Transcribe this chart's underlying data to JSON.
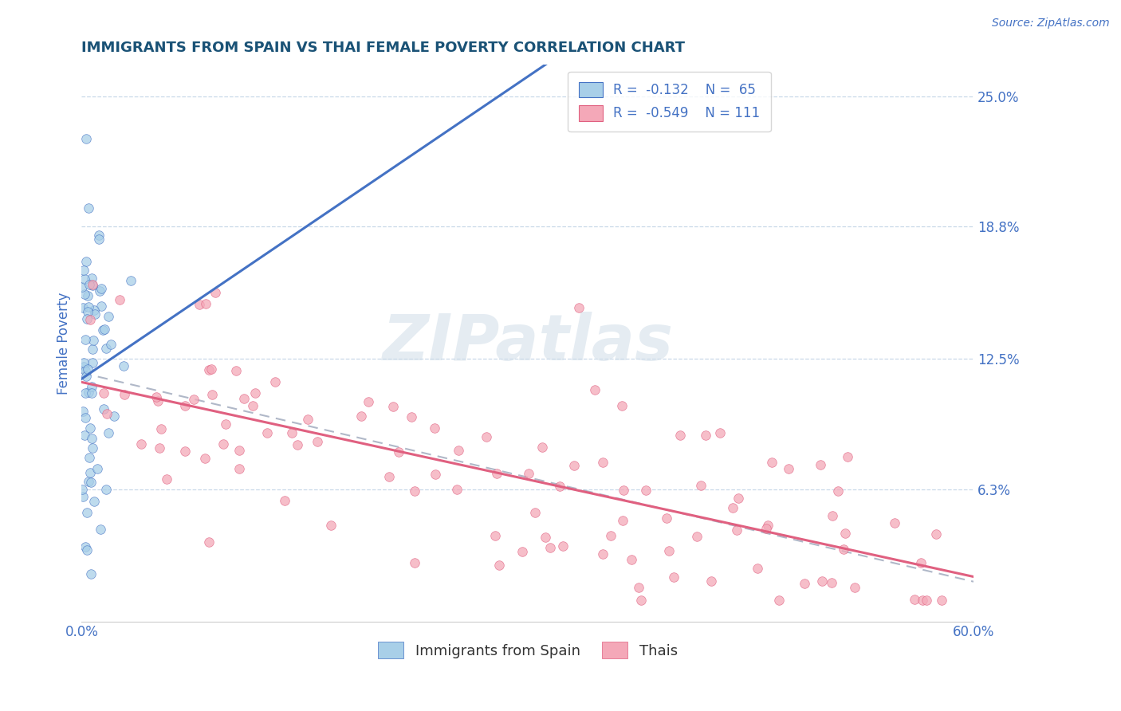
{
  "title": "IMMIGRANTS FROM SPAIN VS THAI FEMALE POVERTY CORRELATION CHART",
  "source": "Source: ZipAtlas.com",
  "ylabel": "Female Poverty",
  "xlim": [
    0.0,
    0.6
  ],
  "ylim": [
    0.0,
    0.265
  ],
  "yticks": [
    0.0,
    0.063,
    0.125,
    0.188,
    0.25
  ],
  "ytick_labels": [
    "",
    "6.3%",
    "12.5%",
    "18.8%",
    "25.0%"
  ],
  "xticks": [
    0.0,
    0.1,
    0.2,
    0.3,
    0.4,
    0.5,
    0.6
  ],
  "xtick_labels": [
    "0.0%",
    "",
    "",
    "",
    "",
    "",
    "60.0%"
  ],
  "blue_R": -0.132,
  "blue_N": 65,
  "pink_R": -0.549,
  "pink_N": 111,
  "blue_color": "#a8cfe8",
  "pink_color": "#f4a8b8",
  "blue_line_color": "#4472c4",
  "pink_line_color": "#e06080",
  "dash_line_color": "#b0b8c8",
  "background_color": "#ffffff",
  "grid_color": "#c8d8e8",
  "title_color": "#1a5276",
  "axis_label_color": "#4472c4",
  "tick_color": "#4472c4",
  "watermark": "ZIPatlas",
  "legend_label_blue": "Immigrants from Spain",
  "legend_label_pink": "Thais",
  "blue_seed": 123,
  "pink_seed": 456
}
